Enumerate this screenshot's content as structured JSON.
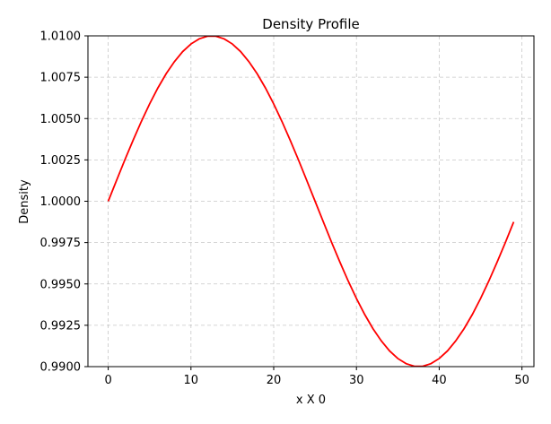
{
  "chart_data": {
    "type": "line",
    "title": "Density Profile",
    "xlabel": "x X 0",
    "ylabel": "Density",
    "xlim": [
      -2.45,
      51.45
    ],
    "ylim": [
      0.99,
      1.01
    ],
    "xticks": [
      0,
      10,
      20,
      30,
      40,
      50
    ],
    "xtick_labels": [
      "0",
      "10",
      "20",
      "30",
      "40",
      "50"
    ],
    "yticks": [
      0.99,
      0.9925,
      0.995,
      0.9975,
      1.0,
      1.0025,
      1.005,
      1.0075,
      1.01
    ],
    "ytick_labels": [
      "0.9900",
      "0.9925",
      "0.9950",
      "0.9975",
      "1.0000",
      "1.0025",
      "1.0050",
      "1.0075",
      "1.0100"
    ],
    "grid": true,
    "legend": false,
    "series": [
      {
        "color": "#ff0000",
        "x": [
          0,
          1,
          2,
          3,
          4,
          5,
          6,
          7,
          8,
          9,
          10,
          11,
          12,
          13,
          14,
          15,
          16,
          17,
          18,
          19,
          20,
          21,
          22,
          23,
          24,
          25,
          26,
          27,
          28,
          29,
          30,
          31,
          32,
          33,
          34,
          35,
          36,
          37,
          38,
          39,
          40,
          41,
          42,
          43,
          44,
          45,
          46,
          47,
          48,
          49
        ],
        "y": [
          1.0,
          1.00125,
          1.00249,
          1.00368,
          1.00482,
          1.00588,
          1.00685,
          1.00771,
          1.00844,
          1.00905,
          1.00951,
          1.00982,
          1.00998,
          1.00998,
          1.00982,
          1.00951,
          1.00905,
          1.00844,
          1.00771,
          1.00685,
          1.00588,
          1.00482,
          1.00368,
          1.00249,
          1.00125,
          1.0,
          0.99875,
          0.99751,
          0.99632,
          0.99518,
          0.99412,
          0.99315,
          0.99229,
          0.99156,
          0.99095,
          0.99049,
          0.99018,
          0.99002,
          0.99002,
          0.99018,
          0.99049,
          0.99095,
          0.99156,
          0.99229,
          0.99315,
          0.99412,
          0.99518,
          0.99632,
          0.99751,
          0.99875
        ]
      }
    ]
  }
}
